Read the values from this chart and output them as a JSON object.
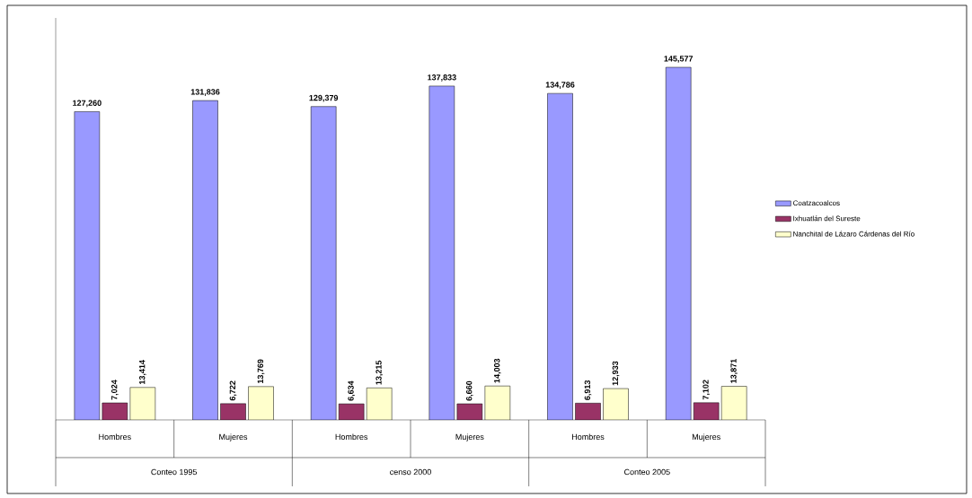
{
  "chart_data": {
    "type": "bar",
    "categories": [
      "Hombres",
      "Mujeres",
      "Hombres",
      "Mujeres",
      "Hombres",
      "Mujeres"
    ],
    "annotations": [
      "Conteo 1995",
      "censo 2000",
      "Conteo 2005"
    ],
    "series": [
      {
        "name": "Coatzacoalcos",
        "color": "#9999ff",
        "values": [
          127260,
          131836,
          129379,
          137833,
          134786,
          145577
        ],
        "value_labels": [
          "127,260",
          "131,836",
          "129,379",
          "137,833",
          "134,786",
          "145,577"
        ]
      },
      {
        "name": "Ixhuatlán del Sureste",
        "color": "#993366",
        "values": [
          7024,
          6722,
          6634,
          6660,
          6913,
          7102
        ],
        "value_labels": [
          "7,024",
          "6,722",
          "6,634",
          "6,660",
          "6,913",
          "7,102"
        ]
      },
      {
        "name": "Nanchital de Lázaro Cárdenas del Río",
        "color": "#ffffcc",
        "values": [
          13414,
          13769,
          13215,
          14003,
          12933,
          13871
        ],
        "value_labels": [
          "13,414",
          "13,769",
          "13,215",
          "14,003",
          "12,933",
          "13,871"
        ]
      }
    ],
    "legend": "right"
  }
}
